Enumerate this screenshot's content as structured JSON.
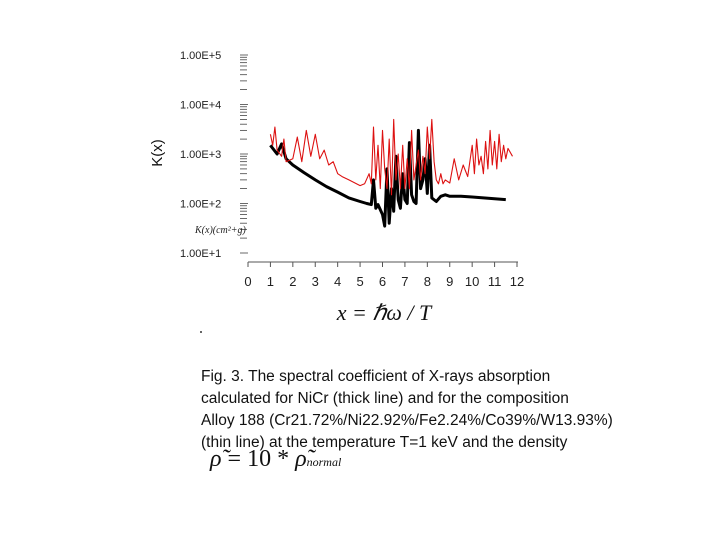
{
  "chart_data": {
    "type": "line",
    "ylabel": "K(x)",
    "xlabel": "x = ℏω / T",
    "unit_label": "K(x)(cm²+g)",
    "yscale": "log",
    "ylim": [
      10,
      100000
    ],
    "xlim": [
      0,
      12
    ],
    "y_ticks": [
      "1.00E+1",
      "1.00E+2",
      "1.00E+3",
      "1.00E+4",
      "1.00E+5"
    ],
    "x_ticks": [
      "0",
      "1",
      "2",
      "3",
      "4",
      "5",
      "6",
      "7",
      "8",
      "9",
      "10",
      "11",
      "12"
    ],
    "series": [
      {
        "color": "#000000",
        "style": "thick",
        "points": [
          [
            1.0,
            1500
          ],
          [
            1.3,
            1000
          ],
          [
            1.5,
            1600
          ],
          [
            1.7,
            800
          ],
          [
            2.0,
            600
          ],
          [
            2.5,
            420
          ],
          [
            3.0,
            300
          ],
          [
            3.5,
            220
          ],
          [
            4.0,
            170
          ],
          [
            4.5,
            130
          ],
          [
            5.0,
            110
          ],
          [
            5.3,
            100
          ],
          [
            5.5,
            95
          ],
          [
            5.6,
            300
          ],
          [
            5.7,
            80
          ],
          [
            5.8,
            95
          ],
          [
            6.0,
            60
          ],
          [
            6.1,
            35
          ],
          [
            6.2,
            500
          ],
          [
            6.3,
            40
          ],
          [
            6.4,
            200
          ],
          [
            6.5,
            70
          ],
          [
            6.6,
            900
          ],
          [
            6.7,
            120
          ],
          [
            6.8,
            80
          ],
          [
            6.9,
            400
          ],
          [
            7.0,
            120
          ],
          [
            7.1,
            100
          ],
          [
            7.2,
            1700
          ],
          [
            7.3,
            150
          ],
          [
            7.4,
            110
          ],
          [
            7.5,
            100
          ],
          [
            7.6,
            3000
          ],
          [
            7.7,
            200
          ],
          [
            7.8,
            300
          ],
          [
            7.9,
            800
          ],
          [
            8.0,
            160
          ],
          [
            8.1,
            1500
          ],
          [
            8.2,
            130
          ],
          [
            8.4,
            110
          ],
          [
            8.6,
            140
          ],
          [
            8.8,
            150
          ],
          [
            9.0,
            140
          ],
          [
            9.5,
            140
          ],
          [
            10.0,
            135
          ],
          [
            10.5,
            130
          ],
          [
            11.0,
            125
          ],
          [
            11.5,
            120
          ]
        ]
      },
      {
        "color": "#dd1111",
        "style": "thin",
        "points": [
          [
            1.0,
            2500
          ],
          [
            1.1,
            1500
          ],
          [
            1.2,
            3500
          ],
          [
            1.3,
            1200
          ],
          [
            1.5,
            900
          ],
          [
            1.6,
            2000
          ],
          [
            1.7,
            700
          ],
          [
            2.0,
            800
          ],
          [
            2.2,
            2200
          ],
          [
            2.4,
            700
          ],
          [
            2.6,
            3000
          ],
          [
            2.8,
            900
          ],
          [
            3.0,
            2500
          ],
          [
            3.2,
            800
          ],
          [
            3.4,
            1200
          ],
          [
            3.6,
            600
          ],
          [
            3.8,
            700
          ],
          [
            4.0,
            400
          ],
          [
            4.2,
            350
          ],
          [
            4.5,
            300
          ],
          [
            5.0,
            230
          ],
          [
            5.2,
            250
          ],
          [
            5.4,
            400
          ],
          [
            5.5,
            250
          ],
          [
            5.6,
            3500
          ],
          [
            5.7,
            300
          ],
          [
            5.8,
            1500
          ],
          [
            5.9,
            200
          ],
          [
            6.0,
            3000
          ],
          [
            6.1,
            500
          ],
          [
            6.2,
            200
          ],
          [
            6.3,
            2000
          ],
          [
            6.4,
            150
          ],
          [
            6.5,
            5000
          ],
          [
            6.6,
            300
          ],
          [
            6.7,
            1000
          ],
          [
            6.8,
            200
          ],
          [
            6.9,
            1500
          ],
          [
            7.0,
            200
          ],
          [
            7.1,
            800
          ],
          [
            7.2,
            200
          ],
          [
            7.3,
            3000
          ],
          [
            7.4,
            300
          ],
          [
            7.5,
            600
          ],
          [
            7.6,
            1200
          ],
          [
            7.7,
            300
          ],
          [
            7.8,
            900
          ],
          [
            7.9,
            400
          ],
          [
            8.0,
            3500
          ],
          [
            8.1,
            800
          ],
          [
            8.2,
            5000
          ],
          [
            8.3,
            700
          ],
          [
            8.4,
            300
          ],
          [
            8.5,
            250
          ],
          [
            8.6,
            400
          ],
          [
            8.7,
            250
          ],
          [
            8.8,
            300
          ],
          [
            9.0,
            260
          ],
          [
            9.2,
            800
          ],
          [
            9.4,
            300
          ],
          [
            9.6,
            600
          ],
          [
            9.8,
            350
          ],
          [
            10.0,
            1500
          ],
          [
            10.1,
            400
          ],
          [
            10.2,
            2000
          ],
          [
            10.3,
            600
          ],
          [
            10.4,
            900
          ],
          [
            10.5,
            400
          ],
          [
            10.6,
            1800
          ],
          [
            10.7,
            500
          ],
          [
            10.8,
            3000
          ],
          [
            10.9,
            600
          ],
          [
            11.0,
            1800
          ],
          [
            11.1,
            500
          ],
          [
            11.2,
            2500
          ],
          [
            11.3,
            700
          ],
          [
            11.4,
            1500
          ],
          [
            11.5,
            800
          ],
          [
            11.6,
            1300
          ],
          [
            11.8,
            900
          ]
        ]
      }
    ]
  },
  "caption": {
    "lines": [
      "Fig. 3. The spectral coefficient of X-rays absorption",
      "calculated for NiCr (thick line) and for the composition",
      "Alloy 188 (Cr21.72%/Ni22.92%/Fe2.24%/Co39%/W13.93%)",
      "(thin line) at the temperature T=1 keV and the density"
    ],
    "formula": {
      "lhs": "ρ̃",
      "middle": " = 10 * ",
      "rhs": "ρ̃",
      "subscript": "normal"
    }
  }
}
